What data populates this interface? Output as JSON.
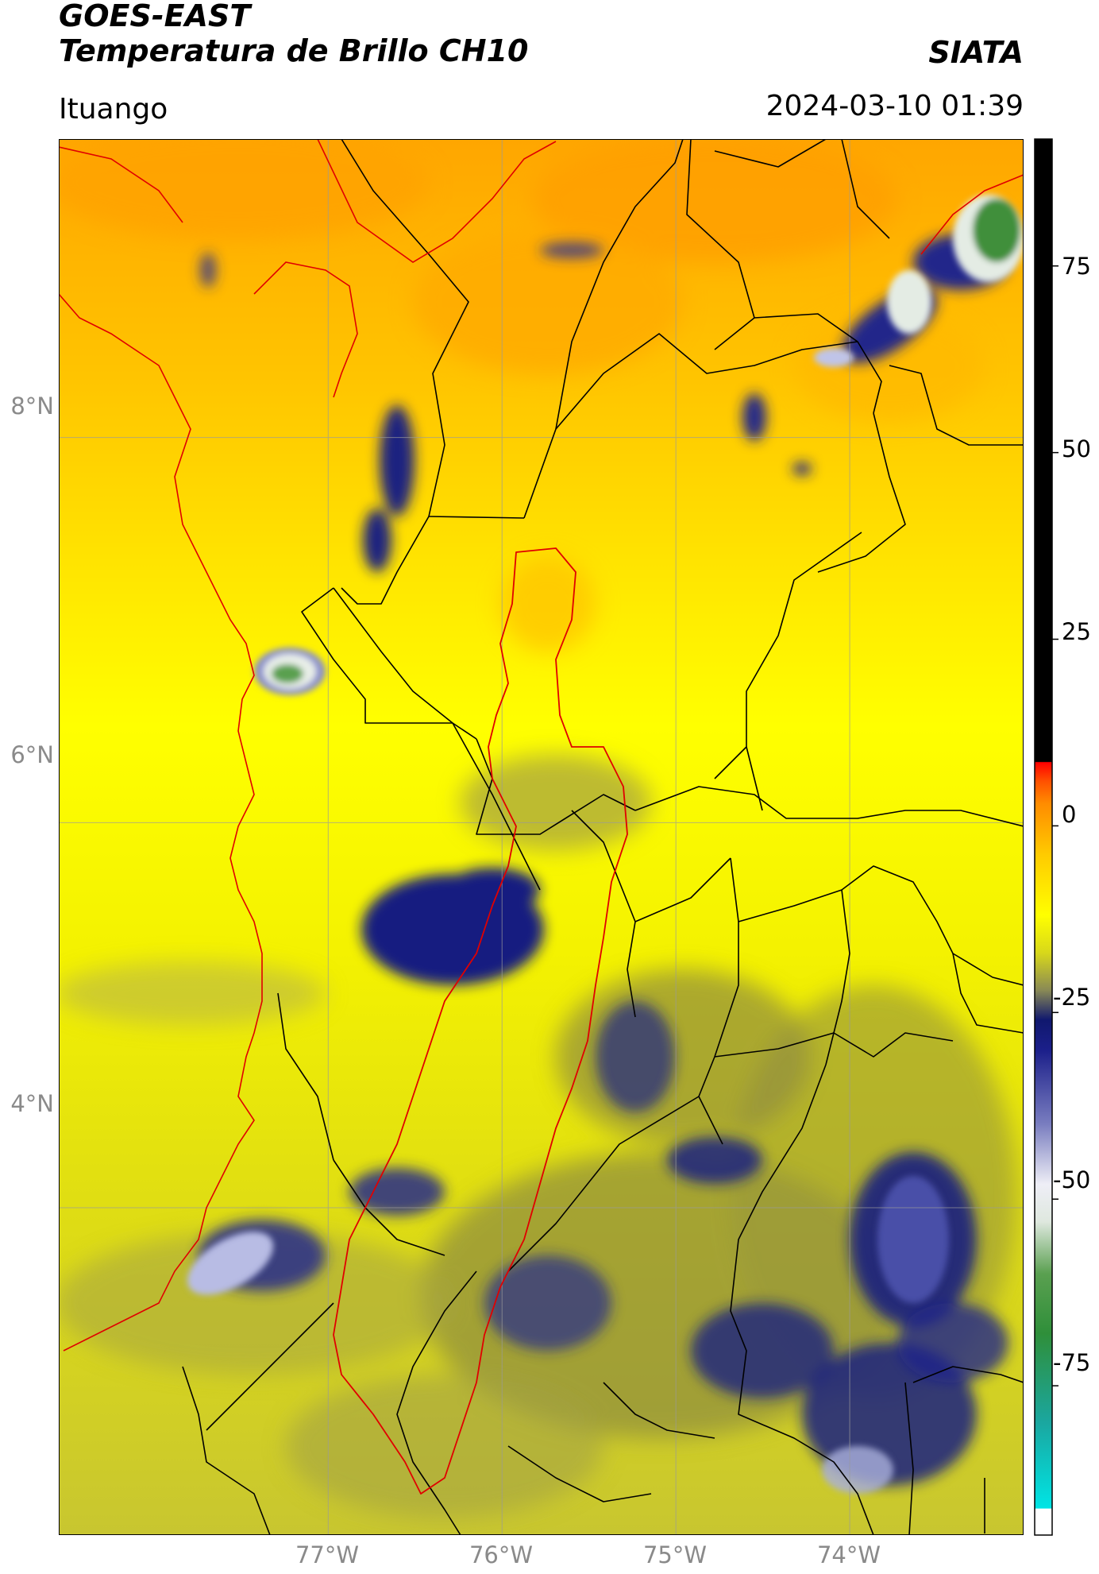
{
  "header": {
    "satellite": "GOES-EAST",
    "product": "Temperatura de Brillo CH10",
    "brand": "SIATA",
    "region": "Ituango",
    "timestamp": "2024-03-10 01:39"
  },
  "map": {
    "lat_ticks": [
      {
        "value": 8,
        "label": "8°N"
      },
      {
        "value": 6,
        "label": "6°N"
      },
      {
        "value": 4,
        "label": "4°N"
      }
    ],
    "lon_ticks": [
      {
        "value": -77,
        "label": "77°W"
      },
      {
        "value": -76,
        "label": "76°W"
      },
      {
        "value": -75,
        "label": "75°W"
      },
      {
        "value": -74,
        "label": "74°W"
      }
    ],
    "extent": {
      "lon_min": -78.55,
      "lon_max": -73.0,
      "lat_min": 2.3,
      "lat_max": 9.55
    },
    "colors": {
      "boundary": "#000000",
      "coast": "#e00000",
      "basin": "#e00000",
      "grid": "#9a9a9a"
    }
  },
  "colorbar": {
    "range": [
      -95,
      92
    ],
    "ticks": [
      {
        "value": 75,
        "label": "75"
      },
      {
        "value": 50,
        "label": "50"
      },
      {
        "value": 25,
        "label": "25"
      },
      {
        "value": 0,
        "label": "0"
      },
      {
        "value": -25,
        "label": "-25"
      },
      {
        "value": -50,
        "label": "-50"
      },
      {
        "value": -75,
        "label": "-75"
      }
    ],
    "stops": [
      {
        "value": -95,
        "color": "#ffffff"
      },
      {
        "value": -91.5,
        "color": "#ffffff"
      },
      {
        "value": -91.4,
        "color": "#00e5e5"
      },
      {
        "value": -80,
        "color": "#1aa7a0"
      },
      {
        "value": -68,
        "color": "#2f8f3a"
      },
      {
        "value": -60,
        "color": "#5aa050"
      },
      {
        "value": -53,
        "color": "#dfe8df"
      },
      {
        "value": -48,
        "color": "#eeeef6"
      },
      {
        "value": -40,
        "color": "#7a7ec0"
      },
      {
        "value": -30,
        "color": "#1b1f8a"
      },
      {
        "value": -26,
        "color": "#10186e"
      },
      {
        "value": -22,
        "color": "#8a8a55"
      },
      {
        "value": -17,
        "color": "#d8d81a"
      },
      {
        "value": -12,
        "color": "#ffff00"
      },
      {
        "value": -4,
        "color": "#ffcc00"
      },
      {
        "value": 3,
        "color": "#ff8c00"
      },
      {
        "value": 6,
        "color": "#ff5000"
      },
      {
        "value": 8.5,
        "color": "#ff0000"
      },
      {
        "value": 8.6,
        "color": "#000000"
      },
      {
        "value": 92,
        "color": "#000000"
      }
    ]
  }
}
